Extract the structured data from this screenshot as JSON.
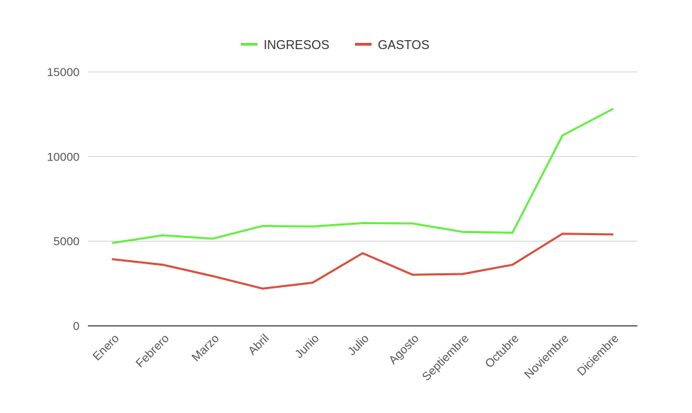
{
  "chart_data": {
    "type": "line",
    "categories": [
      "Enero",
      "Febrero",
      "Marzo",
      "Abril",
      "Junio",
      "Julio",
      "Agosto",
      "Septiembre",
      "Octubre",
      "Noviembre",
      "Diciembre"
    ],
    "series": [
      {
        "name": "INGRESOS",
        "color": "#66ee44",
        "values": [
          4900,
          5350,
          5150,
          5900,
          5870,
          6070,
          6050,
          5550,
          5500,
          11250,
          12800
        ]
      },
      {
        "name": "GASTOS",
        "color": "#d94f3d",
        "values": [
          3930,
          3610,
          2940,
          2200,
          2550,
          4290,
          3020,
          3060,
          3610,
          5440,
          5400
        ]
      }
    ],
    "y_ticks": [
      0,
      5000,
      10000,
      15000
    ],
    "ylim": [
      0,
      15000
    ],
    "grid": true,
    "legend_position": "top-center"
  }
}
